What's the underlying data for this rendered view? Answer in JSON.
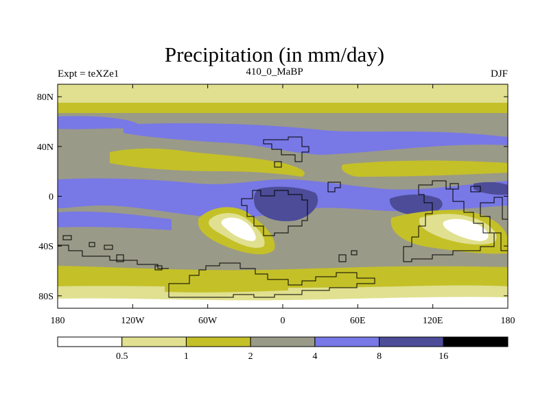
{
  "title": "Precipitation (in mm/day)",
  "left_label": "Expt = teXZe1",
  "center_label": "410_0_MaBP",
  "right_label": "DJF",
  "lat_ticks": [
    {
      "value": 80,
      "label": "80N"
    },
    {
      "value": 40,
      "label": "40N"
    },
    {
      "value": 0,
      "label": "0"
    },
    {
      "value": -40,
      "label": "40S"
    },
    {
      "value": -80,
      "label": "80S"
    }
  ],
  "lon_ticks": [
    {
      "value": -180,
      "label": "180"
    },
    {
      "value": -120,
      "label": "120W"
    },
    {
      "value": -60,
      "label": "60W"
    },
    {
      "value": 0,
      "label": "0"
    },
    {
      "value": 60,
      "label": "60E"
    },
    {
      "value": 120,
      "label": "120E"
    },
    {
      "value": 180,
      "label": "180"
    }
  ],
  "colorbar": {
    "colors": [
      "#ffffff",
      "#e0e090",
      "#c4c028",
      "#9a9a88",
      "#7878e6",
      "#4c4c98",
      "#000000"
    ],
    "labels": [
      "0.5",
      "1",
      "2",
      "4",
      "8",
      "16"
    ]
  },
  "palette": {
    "white": "#ffffff",
    "light_yellow": "#e0e090",
    "olive": "#c4c028",
    "gray": "#9a9a88",
    "blue": "#7878e6",
    "dark_blue": "#4c4c98"
  }
}
